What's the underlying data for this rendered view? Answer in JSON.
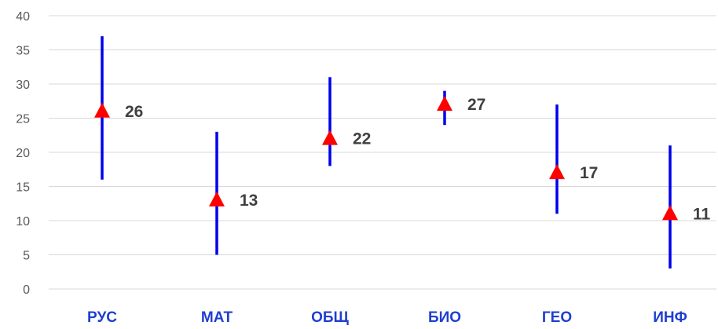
{
  "chart_data": {
    "type": "scatter",
    "subtype": "high-low-markers",
    "title": "",
    "xlabel": "",
    "ylabel": "",
    "ylim": [
      0,
      40
    ],
    "yticks": [
      0,
      5,
      10,
      15,
      20,
      25,
      30,
      35,
      40
    ],
    "grid": true,
    "legend": "none",
    "categories": [
      "РУС",
      "МАТ",
      "ОБЩ",
      "БИО",
      "ГЕО",
      "ИНФ"
    ],
    "series": [
      {
        "role": "high",
        "values": [
          37,
          23,
          31,
          29,
          27,
          21
        ]
      },
      {
        "role": "low",
        "values": [
          16,
          5,
          18,
          24,
          11,
          3
        ]
      },
      {
        "role": "marker",
        "values": [
          26,
          13,
          22,
          27,
          17,
          11
        ]
      }
    ],
    "data_labels": [
      "26",
      "13",
      "22",
      "27",
      "17",
      "11"
    ],
    "colors": {
      "range_line": "#0000ee",
      "marker": "#ff0000",
      "category_label": "#1f3fd0",
      "data_label": "#404040",
      "axis_tick": "#595959",
      "gridline": "#d9d9d9"
    },
    "marker_shape": "triangle"
  }
}
